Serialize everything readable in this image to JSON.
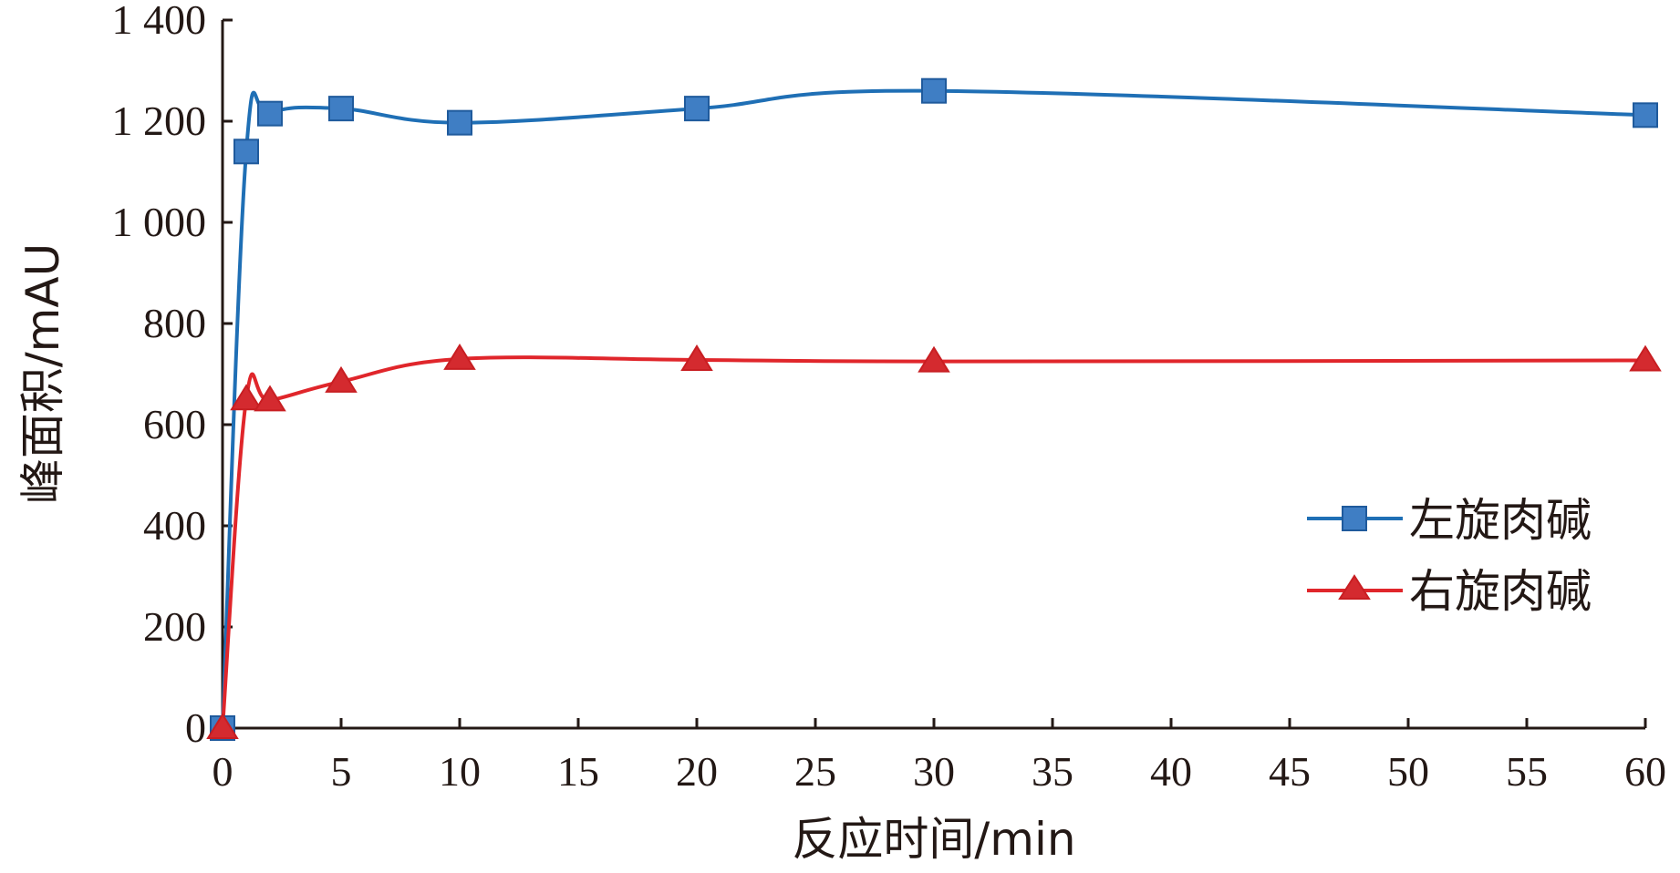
{
  "chart_data": {
    "type": "line",
    "xlabel": "反应时间/min",
    "ylabel": "峰面积/mAU",
    "xlim": [
      0,
      60
    ],
    "ylim": [
      0,
      1400
    ],
    "x_ticks": [
      0,
      5,
      10,
      15,
      20,
      25,
      30,
      35,
      40,
      45,
      50,
      55,
      60
    ],
    "x_tick_labels": [
      "0",
      "5",
      "10",
      "15",
      "20",
      "25",
      "30",
      "35",
      "40",
      "45",
      "50",
      "55",
      "60"
    ],
    "y_ticks": [
      0,
      200,
      400,
      600,
      800,
      1000,
      1200,
      1400
    ],
    "y_tick_labels": [
      "0",
      "200",
      "400",
      "600",
      "800",
      "1 000",
      "1 200",
      "1 400"
    ],
    "grid": false,
    "legend_position": "right",
    "series": [
      {
        "name": "左旋肉碱",
        "marker": "square",
        "color": "#1f6fb5",
        "marker_fill": "#3f7ec4",
        "x": [
          0,
          1,
          2,
          5,
          10,
          20,
          30,
          60
        ],
        "y": [
          0,
          1140,
          1215,
          1225,
          1197,
          1225,
          1260,
          1212
        ]
      },
      {
        "name": "右旋肉碱",
        "marker": "triangle",
        "color": "#e0262b",
        "marker_fill": "#d42a2f",
        "x": [
          0,
          1,
          2,
          5,
          10,
          20,
          30,
          60
        ],
        "y": [
          0,
          650,
          648,
          685,
          730,
          728,
          725,
          727
        ]
      }
    ]
  }
}
